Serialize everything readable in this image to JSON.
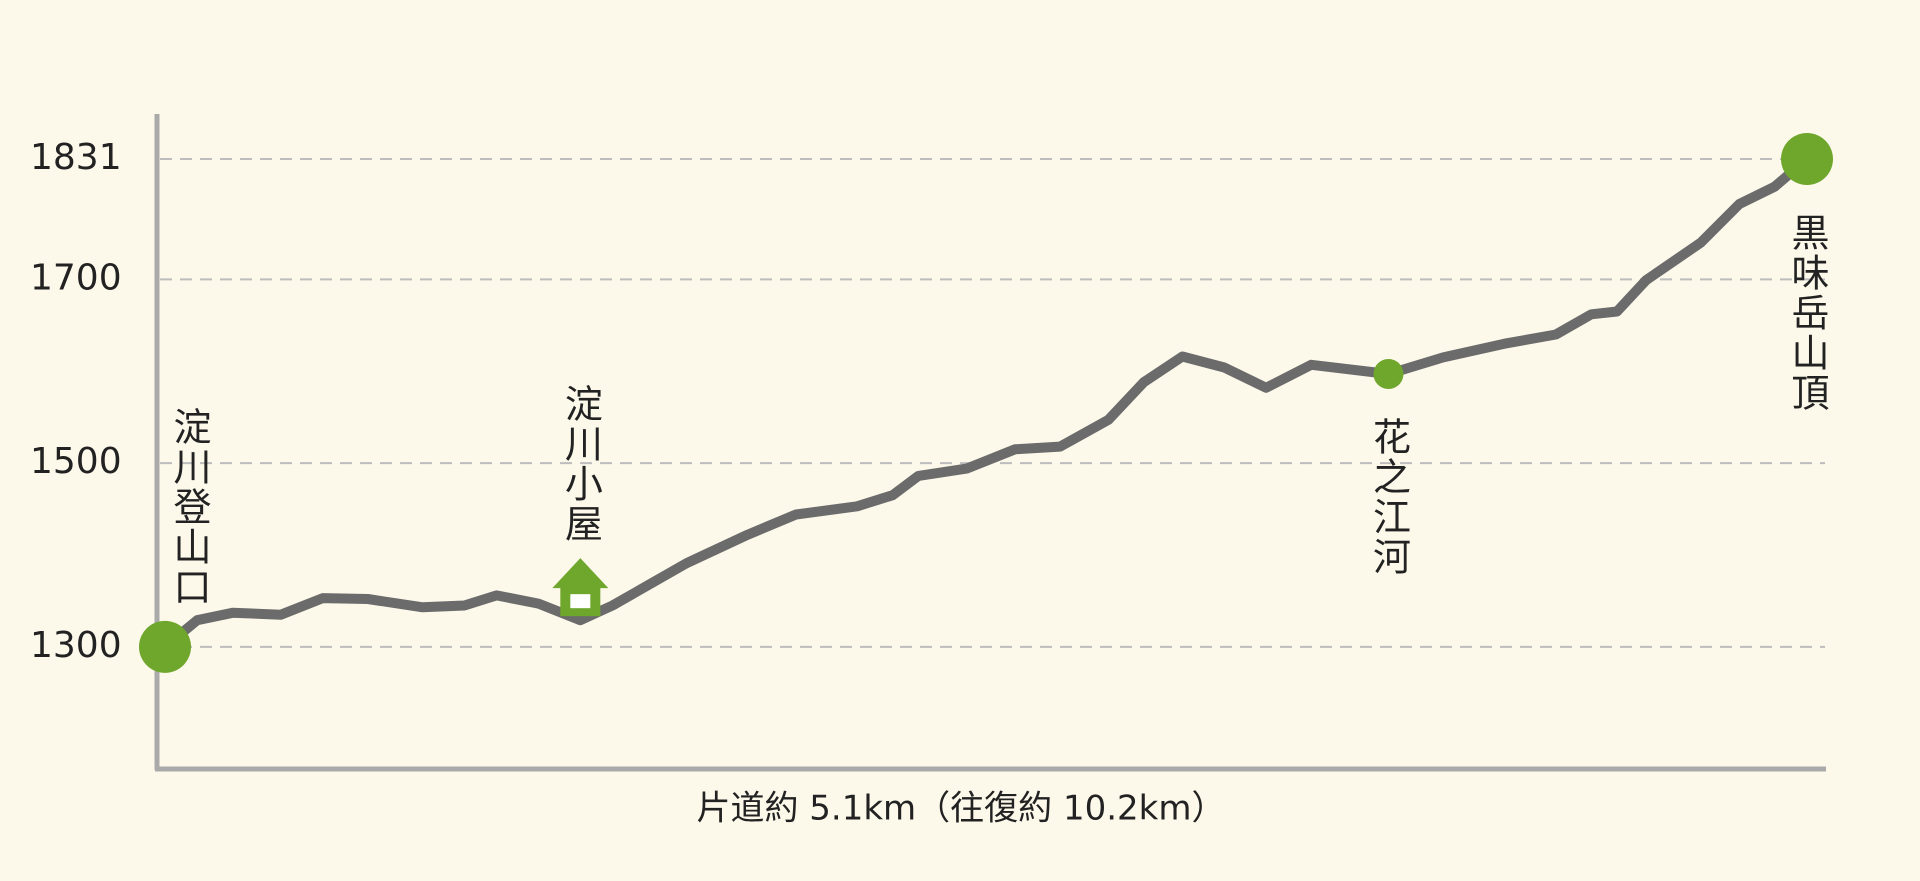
{
  "chart_data": {
    "type": "profile",
    "xlabel": "片道約 5.1km（往復約 10.2km）",
    "x": [
      0,
      0.1,
      0.21,
      0.36,
      0.49,
      0.63,
      0.8,
      0.93,
      1.03,
      1.16,
      1.29,
      1.39,
      1.62,
      1.81,
      1.96,
      2.15,
      2.26,
      2.34,
      2.49,
      2.64,
      2.78,
      2.93,
      3.04,
      3.16,
      3.29,
      3.42,
      3.56,
      3.8,
      3.97,
      4.16,
      4.32,
      4.43,
      4.51,
      4.6,
      4.77,
      4.89,
      5.0,
      5.1
    ],
    "values": [
      1300,
      1329,
      1337,
      1335,
      1353,
      1352,
      1343,
      1345,
      1356,
      1347,
      1329,
      1345,
      1391,
      1422,
      1444,
      1453,
      1465,
      1486,
      1494,
      1515,
      1518,
      1547,
      1588,
      1616,
      1604,
      1582,
      1607,
      1597,
      1615,
      1630,
      1640,
      1662,
      1665,
      1699,
      1740,
      1782,
      1801,
      1831
    ],
    "color": "#6b6b6b",
    "marker_color": "#6fa62c",
    "xlim": [
      0,
      5.1
    ],
    "ylim": [
      1167,
      1880
    ],
    "yticks": [
      1300,
      1500,
      1700,
      1831
    ],
    "grid": true,
    "waypoints": [
      {
        "label": "淀川登山口",
        "x": 0,
        "elevation": 1300,
        "marker": "large",
        "label_side": "above"
      },
      {
        "label": "淀川小屋",
        "x": 1.29,
        "elevation": 1329,
        "marker": "hut",
        "label_side": "above"
      },
      {
        "label": "花之江河",
        "x": 3.8,
        "elevation": 1597,
        "marker": "small",
        "label_side": "below"
      },
      {
        "label": "黒味岳山頂",
        "x": 5.1,
        "elevation": 1831,
        "marker": "large",
        "label_side": "below"
      }
    ]
  }
}
